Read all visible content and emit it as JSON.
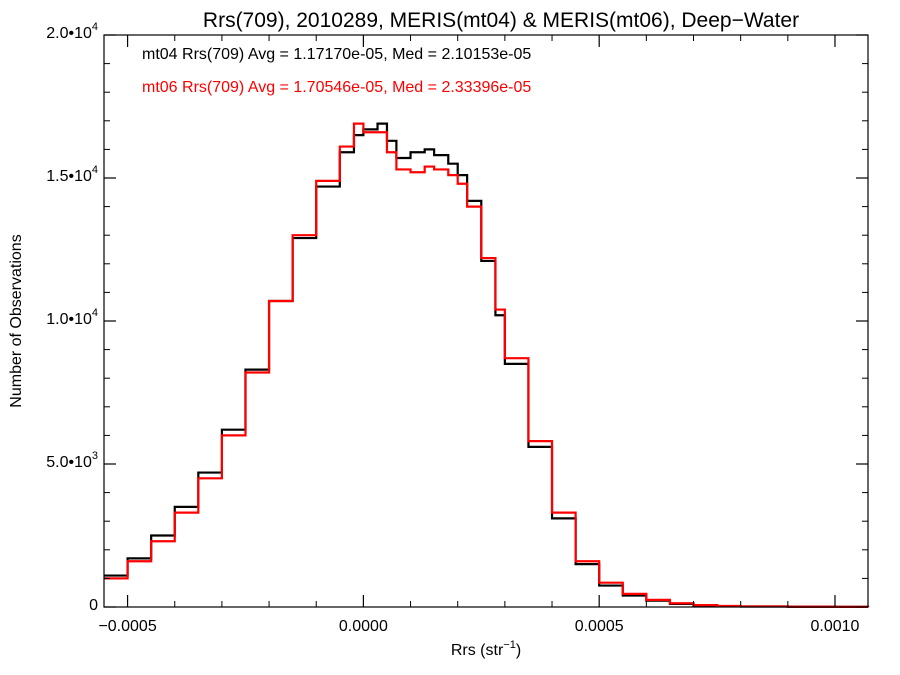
{
  "chart_data": {
    "type": "line",
    "title": "Rrs(709), 2010289, MERIS(mt04) & MERIS(mt06), Deep−Water",
    "xlabel": "Rrs (str",
    "xlabel_sup": "−1",
    "xlabel_suffix": ")",
    "ylabel": "Number of Observations",
    "xlim": [
      -0.00055,
      0.00107
    ],
    "ylim": [
      0,
      20000
    ],
    "x_ticks": [
      {
        "value": -0.0005,
        "label": "−0.0005"
      },
      {
        "value": 0.0,
        "label": "0.0000"
      },
      {
        "value": 0.0005,
        "label": "0.0005"
      },
      {
        "value": 0.001,
        "label": "0.0010"
      }
    ],
    "y_ticks": [
      {
        "value": 0,
        "label": "0",
        "sup": ""
      },
      {
        "value": 5000,
        "label": "5.0•10",
        "sup": "3"
      },
      {
        "value": 10000,
        "label": "1.0•10",
        "sup": "4"
      },
      {
        "value": 15000,
        "label": "1.5•10",
        "sup": "4"
      },
      {
        "value": 20000,
        "label": "2.0•10",
        "sup": "4"
      }
    ],
    "grid": false,
    "legend_placement": "top-left",
    "series": [
      {
        "name": "mt04",
        "stats": "mt04 Rrs(709) Avg = 1.17170e-05, Med = 2.10153e-05",
        "color": "#000000",
        "x": [
          -0.00055,
          -0.0005,
          -0.00045,
          -0.0004,
          -0.00035,
          -0.0003,
          -0.00025,
          -0.0002,
          -0.00015,
          -0.0001,
          -5e-05,
          -2e-05,
          0.0,
          3e-05,
          5e-05,
          7e-05,
          0.0001,
          0.00013,
          0.00015,
          0.00018,
          0.0002,
          0.00022,
          0.00025,
          0.00028,
          0.0003,
          0.00035,
          0.0004,
          0.00045,
          0.0005,
          0.00055,
          0.0006,
          0.00065,
          0.0007,
          0.00075,
          0.0008,
          0.0009,
          0.001,
          0.00107
        ],
        "y": [
          1100,
          1700,
          2500,
          3500,
          4700,
          6200,
          8300,
          10700,
          12900,
          14700,
          15900,
          16500,
          16700,
          16900,
          16300,
          15700,
          15900,
          16000,
          15800,
          15500,
          15100,
          14200,
          12100,
          10200,
          8500,
          5600,
          3100,
          1500,
          750,
          400,
          220,
          110,
          55,
          30,
          18,
          8,
          4,
          2
        ]
      },
      {
        "name": "mt06",
        "stats": "mt06 Rrs(709) Avg = 1.70546e-05, Med = 2.33396e-05",
        "color": "#ff0000",
        "x": [
          -0.00055,
          -0.0005,
          -0.00045,
          -0.0004,
          -0.00035,
          -0.0003,
          -0.00025,
          -0.0002,
          -0.00015,
          -0.0001,
          -5e-05,
          -2e-05,
          0.0,
          3e-05,
          5e-05,
          7e-05,
          0.0001,
          0.00013,
          0.00015,
          0.00018,
          0.0002,
          0.00022,
          0.00025,
          0.00028,
          0.0003,
          0.00035,
          0.0004,
          0.00045,
          0.0005,
          0.00055,
          0.0006,
          0.00065,
          0.0007,
          0.00075,
          0.0008,
          0.0009,
          0.001,
          0.00107
        ],
        "y": [
          1000,
          1600,
          2300,
          3300,
          4500,
          6000,
          8200,
          10700,
          13000,
          14900,
          16100,
          16900,
          16600,
          16600,
          15900,
          15300,
          15200,
          15400,
          15300,
          15100,
          14800,
          14000,
          12200,
          10400,
          8700,
          5800,
          3300,
          1600,
          850,
          460,
          250,
          130,
          65,
          35,
          20,
          9,
          4,
          2
        ]
      }
    ]
  }
}
